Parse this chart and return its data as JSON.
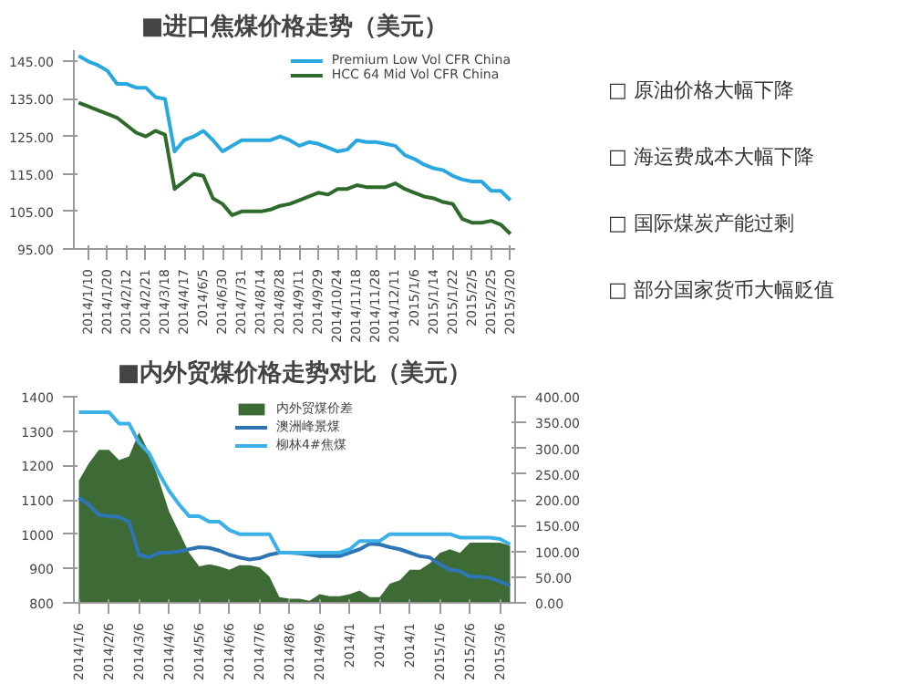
{
  "chart_data": [
    {
      "type": "line",
      "title": "■进口焦煤价格走势（美元）",
      "categories": [
        null,
        "2014/1/10",
        null,
        "2014/1/20",
        null,
        "2014/2/12",
        null,
        "2014/2/21",
        null,
        "2014/3/18",
        null,
        "2014/4/17",
        null,
        "2014/6/5",
        null,
        "2014/6/30",
        null,
        "2014/7/31",
        null,
        "2014/8/14",
        null,
        "2014/8/28",
        null,
        "2014/9/11",
        null,
        "2014/9/29",
        null,
        "2014/10/24",
        null,
        "2014/11/18",
        null,
        "2014/11/28",
        null,
        "2014/12/11",
        null,
        "2015/1/6",
        null,
        "2015/1/14",
        null,
        "2015/1/22",
        null,
        "2015/2/5",
        null,
        "2015/2/25",
        null,
        "2015/3/20"
      ],
      "series": [
        {
          "name": "Premium Low Vol CFR China",
          "color": "#29a8e0",
          "values": [
            146.5,
            145,
            144,
            142.5,
            139,
            139,
            138,
            138,
            135.5,
            135,
            121,
            124,
            125,
            126.5,
            124,
            121,
            122.5,
            124,
            124,
            124,
            124,
            125,
            124,
            122.5,
            123.5,
            123,
            122,
            121,
            121.5,
            124,
            123.5,
            123.5,
            123,
            122.5,
            120,
            119,
            117.5,
            116.5,
            116,
            114.5,
            113.5,
            113,
            113,
            110.5,
            110.5,
            108
          ]
        },
        {
          "name": "HCC 64 Mid Vol CFR China",
          "color": "#2e6b2a",
          "values": [
            134,
            133,
            132,
            131,
            130,
            128,
            126,
            125,
            126.5,
            125.5,
            111,
            113,
            115,
            114.5,
            108.5,
            107,
            104,
            105,
            105,
            105,
            105.5,
            106.5,
            107,
            108,
            109,
            110,
            109.5,
            111,
            111,
            112,
            111.5,
            111.5,
            111.5,
            112.5,
            111,
            110,
            109,
            108.5,
            107.5,
            107,
            103,
            102,
            102,
            102.5,
            101.5,
            99
          ]
        }
      ],
      "ylim": [
        95,
        148
      ],
      "yticks": [
        {
          "value": 95,
          "label": "95.00"
        },
        {
          "value": 105,
          "label": "105.00"
        },
        {
          "value": 115,
          "label": "115.00"
        },
        {
          "value": 125,
          "label": "125.00"
        },
        {
          "value": 135,
          "label": "135.00"
        },
        {
          "value": 145,
          "label": "145.00"
        }
      ],
      "legend": "top right"
    },
    {
      "type": "line",
      "title": "■内外贸煤价格走势对比（美元）",
      "categories": [
        "2014/1/6",
        null,
        null,
        "2014/2/6",
        null,
        null,
        "2014/3/6",
        null,
        null,
        "2014/4/6",
        null,
        null,
        "2014/5/6",
        null,
        null,
        "2014/6/6",
        null,
        null,
        "2014/7/6",
        null,
        null,
        "2014/8/6",
        null,
        null,
        "2014/9/6",
        null,
        null,
        "2014/1",
        null,
        null,
        "2014/1",
        null,
        null,
        "2014/1",
        null,
        null,
        "2015/1/6",
        null,
        null,
        "2015/2/6",
        null,
        null,
        "2015/3/6",
        null
      ],
      "series": [
        {
          "name": "内外贸煤价差",
          "type": "area",
          "axis": "y2",
          "color": "#3e6b35",
          "values": [
            237,
            271,
            297,
            297,
            277,
            284,
            331,
            291,
            237,
            177,
            137,
            97,
            71,
            75,
            71,
            64,
            73,
            73,
            69,
            51,
            11,
            8,
            8,
            4,
            17,
            13,
            13,
            17,
            24,
            11,
            11,
            37,
            44,
            64,
            64,
            77,
            97,
            104,
            97,
            117,
            117,
            117,
            117,
            111
          ]
        },
        {
          "name": "澳洲峰景煤",
          "color": "#2e75b6",
          "values": [
            1106,
            1086,
            1056,
            1052,
            1050,
            1036,
            940,
            932,
            946,
            946,
            950,
            956,
            962,
            960,
            952,
            940,
            932,
            926,
            930,
            940,
            946,
            946,
            944,
            940,
            936,
            936,
            936,
            946,
            956,
            972,
            970,
            962,
            956,
            946,
            936,
            932,
            912,
            896,
            892,
            876,
            876,
            872,
            862,
            850
          ]
        },
        {
          "name": "柳林4#焦煤",
          "color": "#3cb0e8",
          "values": [
            1355,
            1355,
            1355,
            1355,
            1322,
            1322,
            1266,
            1236,
            1176,
            1126,
            1086,
            1052,
            1052,
            1036,
            1036,
            1012,
            1000,
            1000,
            1000,
            1000,
            946,
            946,
            946,
            946,
            946,
            946,
            946,
            956,
            980,
            980,
            980,
            1000,
            1000,
            1000,
            1000,
            1000,
            1000,
            1000,
            990,
            990,
            990,
            990,
            986,
            970
          ]
        }
      ],
      "ylim": [
        800,
        1400
      ],
      "yticks": [
        800,
        900,
        1000,
        1100,
        1200,
        1300,
        1400
      ],
      "y2lim": [
        0,
        400
      ],
      "y2ticks": [
        {
          "value": 0,
          "label": "0.00"
        },
        {
          "value": 50,
          "label": "50.00"
        },
        {
          "value": 100,
          "label": "100.00"
        },
        {
          "value": 150,
          "label": "150.00"
        },
        {
          "value": 200,
          "label": "200.00"
        },
        {
          "value": 250,
          "label": "250.00"
        },
        {
          "value": 300,
          "label": "300.00"
        },
        {
          "value": 350,
          "label": "350.00"
        },
        {
          "value": 400,
          "label": "400.00"
        }
      ],
      "legend": "top"
    },
    {
      "type": "other",
      "annotations": [
        "□ 原油价格大幅下降",
        "□ 海运费成本大幅下降",
        "□ 国际煤炭产能过剩",
        "□ 部分国家货币大幅贬值"
      ]
    }
  ]
}
